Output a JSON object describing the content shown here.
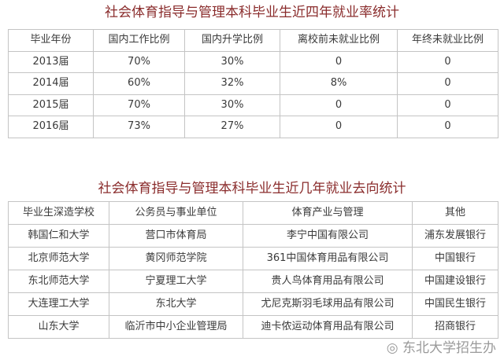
{
  "table1": {
    "title": "社会体育指导与管理本科毕业生近四年就业率统计",
    "headers": [
      "毕业年份",
      "国内工作比例",
      "国内升学比例",
      "离校前未就业比例",
      "年终未就业比例"
    ],
    "rows": [
      [
        "2013届",
        "70%",
        "30%",
        "0",
        "0"
      ],
      [
        "2014届",
        "60%",
        "32%",
        "8%",
        "0"
      ],
      [
        "2015届",
        "70%",
        "30%",
        "0",
        "0"
      ],
      [
        "2016届",
        "73%",
        "27%",
        "0",
        "0"
      ]
    ]
  },
  "table2": {
    "title": "社会体育指导与管理本科毕业生近几年就业去向统计",
    "headers": [
      "毕业生深造学校",
      "公务员与事业单位",
      "体育产业与管理",
      "其他"
    ],
    "rows": [
      [
        "韩国仁和大学",
        "营口市体育局",
        "李宁中国有限公司",
        "浦东发展银行"
      ],
      [
        "北京师范大学",
        "黄冈师范学院",
        "361中国体育用品有限公司",
        "中国银行"
      ],
      [
        "东北师范大学",
        "宁夏理工大学",
        "贵人鸟体育用品有限公司",
        "中国建设银行"
      ],
      [
        "大连理工大学",
        "东北大学",
        "尤尼克斯羽毛球用品有限公司",
        "中国民生银行"
      ],
      [
        "山东大学",
        "临沂市中小企业管理局",
        "迪卡侬运动体育用品有限公司",
        "招商银行"
      ]
    ]
  },
  "watermark": "东北大学招生办"
}
